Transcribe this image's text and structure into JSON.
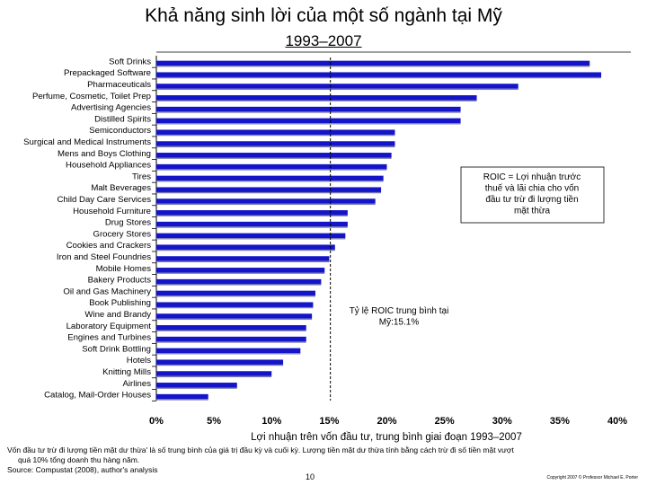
{
  "chart_data": {
    "type": "bar",
    "orientation": "horizontal",
    "title": "Khả năng sinh lời của một số ngành tại Mỹ",
    "subtitle": "1993–2007",
    "xlabel": "Lợi nhuận trên vốn đầu tư, trung bình giai đoạn 1993–2007",
    "xlim": [
      0,
      40
    ],
    "xticks": [
      "0%",
      "5%",
      "10%",
      "15%",
      "20%",
      "25%",
      "30%",
      "35%",
      "40%"
    ],
    "categories": [
      "Soft Drinks",
      "Prepackaged Software",
      "Pharmaceuticals",
      "Perfume, Cosmetic, Toilet Prep",
      "Advertising Agencies",
      "Distilled Spirits",
      "Semiconductors",
      "Surgical and Medical Instruments",
      "Mens and Boys Clothing",
      "Household Appliances",
      "Tires",
      "Malt Beverages",
      "Child Day Care Services",
      "Household Furniture",
      "Drug Stores",
      "Grocery Stores",
      "Cookies and Crackers",
      "Iron and Steel Foundries",
      "Mobile Homes",
      "Bakery Products",
      "Oil and Gas Machinery",
      "Book Publishing",
      "Wine and Brandy",
      "Laboratory Equipment",
      "Engines and Turbines",
      "Soft Drink Bottling",
      "Hotels",
      "Knitting Mills",
      "Airlines",
      "Catalog, Mail-Order Houses"
    ],
    "values": [
      37.6,
      38.6,
      31.4,
      27.8,
      26.4,
      26.4,
      20.7,
      20.7,
      20.4,
      20.0,
      19.7,
      19.5,
      19.0,
      16.6,
      16.6,
      16.4,
      15.5,
      15.0,
      14.6,
      14.3,
      13.8,
      13.6,
      13.5,
      13.0,
      13.0,
      12.5,
      11.0,
      10.0,
      7.0,
      4.5
    ],
    "average": 15.1,
    "bar_color": "#1414c8",
    "annotations": {
      "definition": "ROIC = Lợi nhuận trước thuế và lãi chia cho vốn đầu tư trừ đi lượng tiền mặt thừa",
      "average_label": "Tỷ lệ ROIC trung bình tại Mỹ:15.1%"
    }
  },
  "footnote": {
    "line1": "Vốn đầu tư trừ đi lượng tiền mặt dư thừa' là số trung bình của giá trị đầu kỳ và cuối kỳ. Lượng tiền mặt dư thừa tính bằng cách trừ đi số tiền mặt vượt",
    "line2": "quá 10% tổng doanh thu hàng năm.",
    "source": "Source: Compustat (2008), author's analysis"
  },
  "page_number": "10",
  "copyright": "Copyright 2007 © Professor Michael E. Porter"
}
